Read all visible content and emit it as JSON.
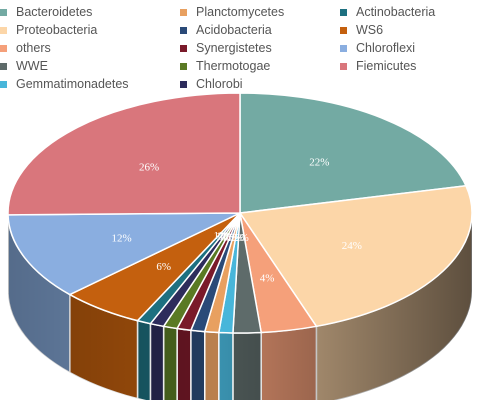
{
  "chart_data": {
    "type": "pie",
    "style": "3d",
    "legend_position": "top",
    "title": "",
    "series": [
      {
        "name": "Bacteroidetes",
        "value": 22,
        "label": "22%",
        "color": "#73aaa3"
      },
      {
        "name": "Proteobacteria",
        "value": 24,
        "label": "24%",
        "color": "#fcd6a8"
      },
      {
        "name": "others",
        "value": 4,
        "label": "4%",
        "color": "#f5a07a"
      },
      {
        "name": "WWE",
        "value": 2,
        "label": "2%",
        "color": "#5e6b6a"
      },
      {
        "name": "Gemmatimonadetes",
        "value": 1,
        "label": "1%",
        "color": "#48b6da"
      },
      {
        "name": "Planctomycetes",
        "value": 1,
        "label": "1%",
        "color": "#e8a060"
      },
      {
        "name": "Acidobacteria",
        "value": 1,
        "label": "1%",
        "color": "#2a4a78"
      },
      {
        "name": "Synergistetes",
        "value": 1,
        "label": "1%",
        "color": "#7a1a2a"
      },
      {
        "name": "Thermotogae",
        "value": 1,
        "label": "1%",
        "color": "#5a7a24"
      },
      {
        "name": "Chlorobi",
        "value": 1,
        "label": "1%",
        "color": "#2d2c5c"
      },
      {
        "name": "Actinobacteria",
        "value": 1,
        "label": "1%",
        "color": "#1d7080"
      },
      {
        "name": "WS6",
        "value": 6,
        "label": "6%",
        "color": "#c4600e"
      },
      {
        "name": "Chloroflexi",
        "value": 12,
        "label": "12%",
        "color": "#8aaee0"
      },
      {
        "name": "Fiemicutes",
        "value": 26,
        "label": "26%",
        "color": "#d9767c"
      }
    ]
  }
}
